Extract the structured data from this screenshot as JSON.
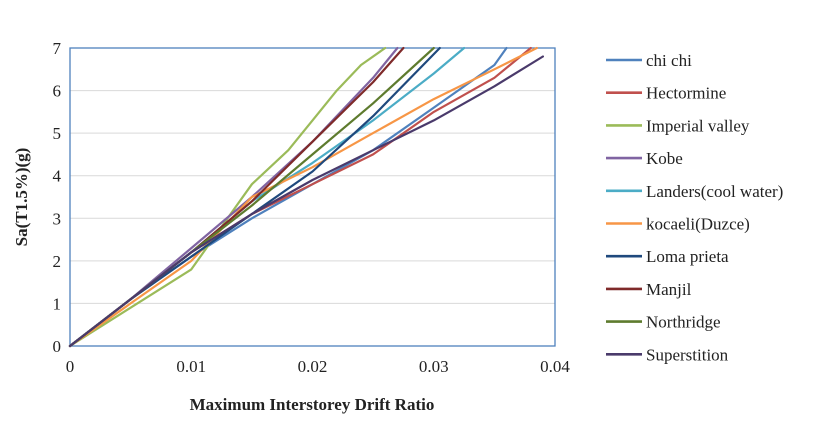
{
  "chart_data": {
    "type": "line",
    "title": "",
    "xlabel": "Maximum Interstorey Drift Ratio",
    "ylabel": "Sa(T1.5%)(g)",
    "xlim": [
      0,
      0.04
    ],
    "ylim": [
      0,
      7
    ],
    "xticks": [
      0,
      0.01,
      0.02,
      0.03,
      0.04
    ],
    "xtick_labels": [
      "0",
      "0.01",
      "0.02",
      "0.03",
      "0.04"
    ],
    "yticks": [
      0,
      1,
      2,
      3,
      4,
      5,
      6,
      7
    ],
    "ytick_labels": [
      "0",
      "1",
      "2",
      "3",
      "4",
      "5",
      "6",
      "7"
    ],
    "grid": "horizontal",
    "legend_position": "right",
    "series": [
      {
        "name": "chi chi",
        "color": "#4F81BD",
        "x": [
          0,
          0.005,
          0.01,
          0.015,
          0.02,
          0.025,
          0.03,
          0.035,
          0.036
        ],
        "y": [
          0,
          1.1,
          2.1,
          3.0,
          3.8,
          4.6,
          5.6,
          6.6,
          7.0
        ]
      },
      {
        "name": "Hectormine",
        "color": "#C0504D",
        "x": [
          0,
          0.005,
          0.01,
          0.015,
          0.02,
          0.025,
          0.03,
          0.035,
          0.038
        ],
        "y": [
          0,
          1.1,
          2.2,
          3.1,
          3.8,
          4.5,
          5.5,
          6.3,
          7.0
        ]
      },
      {
        "name": "Imperial valley",
        "color": "#9BBB59",
        "x": [
          0,
          0.005,
          0.01,
          0.013,
          0.015,
          0.018,
          0.02,
          0.022,
          0.024,
          0.026
        ],
        "y": [
          0,
          0.9,
          1.8,
          3.0,
          3.8,
          4.6,
          5.3,
          6.0,
          6.6,
          7.0
        ]
      },
      {
        "name": "Kobe",
        "color": "#8064A2",
        "x": [
          0,
          0.005,
          0.01,
          0.015,
          0.02,
          0.025,
          0.027
        ],
        "y": [
          0,
          1.1,
          2.3,
          3.5,
          4.8,
          6.3,
          7.0
        ]
      },
      {
        "name": "Landers(cool water)",
        "color": "#4BACC6",
        "x": [
          0,
          0.005,
          0.01,
          0.015,
          0.02,
          0.025,
          0.03,
          0.0325
        ],
        "y": [
          0,
          1.1,
          2.2,
          3.4,
          4.3,
          5.3,
          6.4,
          7.0
        ]
      },
      {
        "name": "kocaeli(Duzce)",
        "color": "#F79646",
        "x": [
          0,
          0.005,
          0.01,
          0.015,
          0.02,
          0.025,
          0.03,
          0.035,
          0.0385
        ],
        "y": [
          0,
          1.0,
          2.0,
          3.5,
          4.2,
          5.0,
          5.8,
          6.5,
          7.0
        ]
      },
      {
        "name": "Loma prieta",
        "color": "#1F497D",
        "x": [
          0,
          0.005,
          0.01,
          0.015,
          0.02,
          0.025,
          0.0305
        ],
        "y": [
          0,
          1.1,
          2.1,
          3.1,
          4.1,
          5.4,
          7.0
        ]
      },
      {
        "name": "Manjil",
        "color": "#7F2A2A",
        "x": [
          0,
          0.005,
          0.01,
          0.015,
          0.02,
          0.025,
          0.0275
        ],
        "y": [
          0,
          1.1,
          2.2,
          3.4,
          4.8,
          6.2,
          7.0
        ]
      },
      {
        "name": "Northridge",
        "color": "#5E7B2E",
        "x": [
          0,
          0.005,
          0.01,
          0.015,
          0.02,
          0.025,
          0.03
        ],
        "y": [
          0,
          1.1,
          2.2,
          3.3,
          4.5,
          5.7,
          7.0
        ]
      },
      {
        "name": "Superstition",
        "color": "#4A3A6B",
        "x": [
          0,
          0.005,
          0.01,
          0.015,
          0.02,
          0.025,
          0.03,
          0.035,
          0.039
        ],
        "y": [
          0,
          1.1,
          2.2,
          3.1,
          3.9,
          4.6,
          5.3,
          6.1,
          6.8
        ]
      }
    ]
  }
}
